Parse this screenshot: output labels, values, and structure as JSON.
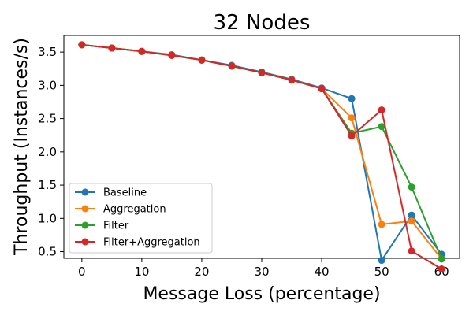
{
  "chart_data": {
    "type": "line",
    "title": "32 Nodes",
    "xlabel": "Message Loss (percentage)",
    "ylabel": "Throughput (Instances/s)",
    "xlim": [
      -3,
      63
    ],
    "ylim": [
      0.4,
      3.75
    ],
    "xticks": [
      0,
      10,
      20,
      30,
      40,
      50,
      60
    ],
    "yticks": [
      0.5,
      1.0,
      1.5,
      2.0,
      2.5,
      3.0,
      3.5
    ],
    "xtick_labels": [
      "0",
      "10",
      "20",
      "30",
      "40",
      "50",
      "60"
    ],
    "ytick_labels": [
      "0.5",
      "1.0",
      "1.5",
      "2.0",
      "2.5",
      "3.0",
      "3.5"
    ],
    "grid": false,
    "legend": "lower-left",
    "x": [
      0,
      5,
      10,
      15,
      20,
      25,
      30,
      35,
      40,
      45,
      50,
      55,
      60
    ],
    "series": [
      {
        "name": "Baseline",
        "color": "#1f77b4",
        "values": [
          3.61,
          3.56,
          3.51,
          3.46,
          3.38,
          3.3,
          3.2,
          3.09,
          2.96,
          2.8,
          0.37,
          1.05,
          0.46
        ]
      },
      {
        "name": "Aggregation",
        "color": "#ff7f0e",
        "values": [
          3.61,
          3.56,
          3.51,
          3.45,
          3.38,
          3.29,
          3.19,
          3.08,
          2.95,
          2.51,
          0.91,
          0.96,
          0.39
        ]
      },
      {
        "name": "Filter",
        "color": "#2ca02c",
        "values": [
          3.61,
          3.56,
          3.51,
          3.45,
          3.38,
          3.29,
          3.19,
          3.08,
          2.95,
          2.28,
          2.38,
          1.47,
          0.39
        ]
      },
      {
        "name": "Filter+Aggregation",
        "color": "#d62728",
        "values": [
          3.61,
          3.56,
          3.51,
          3.45,
          3.38,
          3.29,
          3.19,
          3.08,
          2.95,
          2.24,
          2.63,
          0.51,
          0.24
        ]
      }
    ]
  }
}
